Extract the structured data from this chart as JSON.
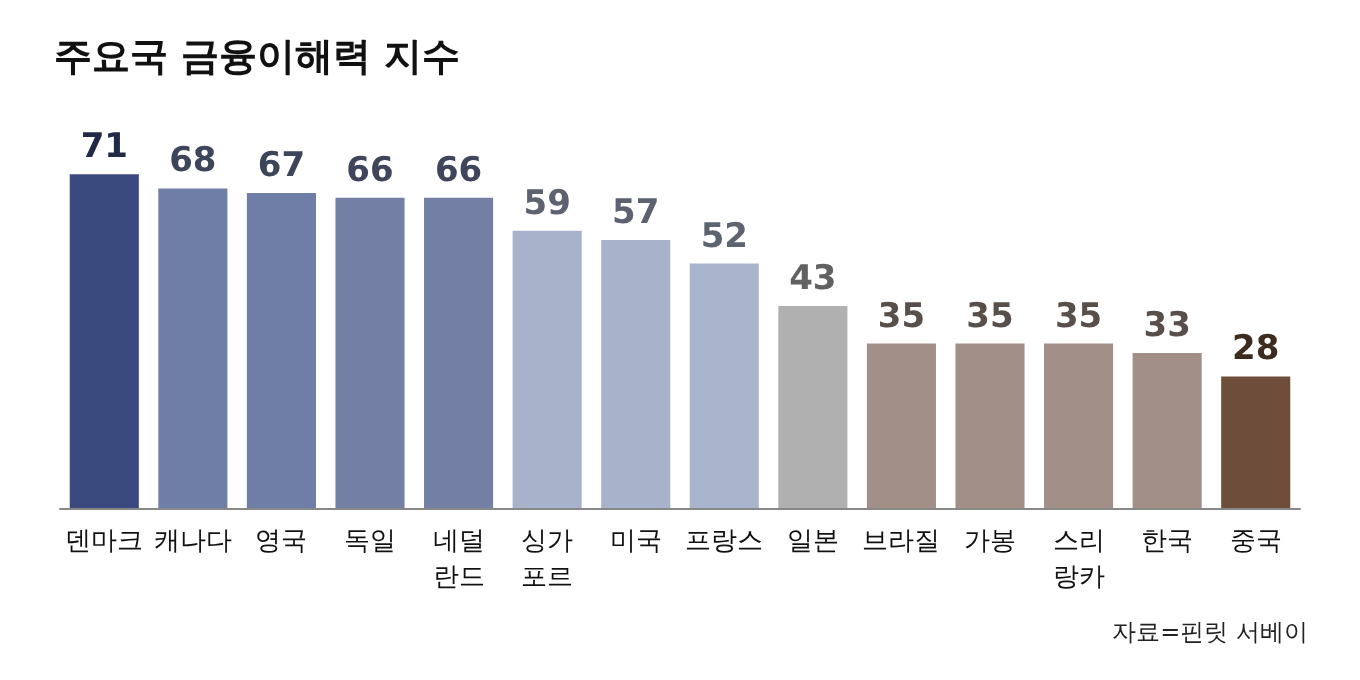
{
  "chart_data": {
    "type": "bar",
    "title": "주요국 금융이해력 지수",
    "categories": [
      "덴마크",
      "캐나다",
      "영국",
      "독일",
      "네덜\n란드",
      "싱가\n포르",
      "미국",
      "프랑스",
      "일본",
      "브라질",
      "가봉",
      "스리\n랑카",
      "한국",
      "중국"
    ],
    "values": [
      71,
      68,
      67,
      66,
      66,
      59,
      57,
      52,
      43,
      35,
      35,
      35,
      33,
      28
    ],
    "colors": [
      "#3b4a7e",
      "#6f7ea6",
      "#6f7ea6",
      "#737fa5",
      "#737fa5",
      "#a8b2ca",
      "#a8b2ca",
      "#a8b5cc",
      "#b0b0b0",
      "#a28f87",
      "#a28f87",
      "#a28f87",
      "#a28f87",
      "#6e4e3a"
    ],
    "tick_labels": "x",
    "data_labels": true,
    "annotations": [
      "자료=핀릿 서베이"
    ]
  }
}
